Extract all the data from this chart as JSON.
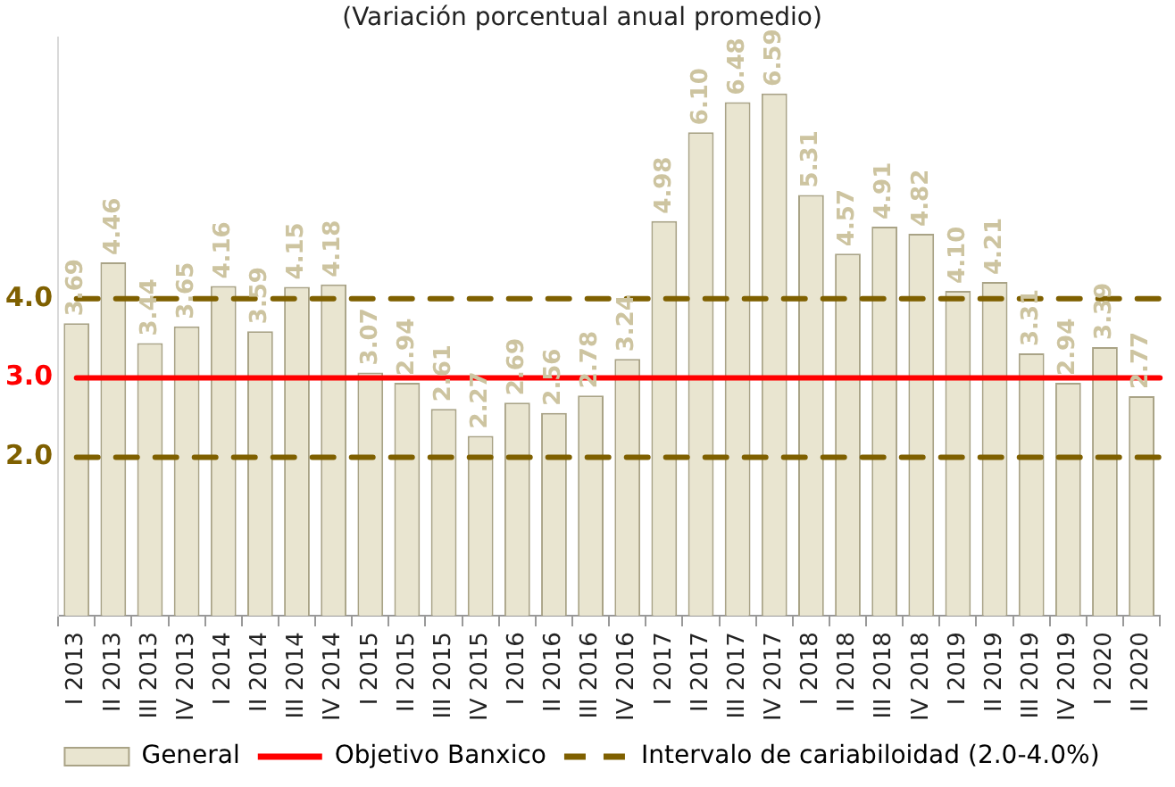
{
  "chart_data": {
    "type": "bar",
    "title": "(Variación porcentual anual promedio)",
    "categories": [
      "I 2013",
      "II 2013",
      "III 2013",
      "IV 2013",
      "I 2014",
      "II 2014",
      "III 2014",
      "IV 2014",
      "I 2015",
      "II 2015",
      "III 2015",
      "IV 2015",
      "I 2016",
      "II 2016",
      "III 2016",
      "IV 2016",
      "I 2017",
      "II 2017",
      "III 2017",
      "IV 2017",
      "I 2018",
      "II 2018",
      "III 2018",
      "IV 2018",
      "I 2019",
      "II 2019",
      "III 2019",
      "IV 2019",
      "I 2020",
      "II 2020"
    ],
    "series": [
      {
        "name": "General",
        "color": "#e9e5d0",
        "values": [
          3.69,
          4.46,
          3.44,
          3.65,
          4.16,
          3.59,
          4.15,
          4.18,
          3.07,
          2.94,
          2.61,
          2.27,
          2.69,
          2.56,
          2.78,
          3.24,
          4.98,
          6.1,
          6.48,
          6.59,
          5.31,
          4.57,
          4.91,
          4.82,
          4.1,
          4.21,
          3.31,
          2.94,
          3.39,
          2.77
        ]
      }
    ],
    "value_labels": [
      "3.69",
      "4.46",
      "3.44",
      "3.65",
      "4.16",
      "3.59",
      "4.15",
      "4.18",
      "3.07",
      "2.94",
      "2.61",
      "2.27",
      "2.69",
      "2.56",
      "2.78",
      "3.24",
      "4.98",
      "6.10",
      "6.48",
      "6.59",
      "5.31",
      "4.57",
      "4.91",
      "4.82",
      "4.10",
      "4.21",
      "3.31",
      "2.94",
      "3.39",
      "2.77"
    ],
    "yticks": [
      {
        "value": 2,
        "label": "2.0"
      },
      {
        "value": 3,
        "label": "3.0"
      },
      {
        "value": 4,
        "label": "4.0"
      }
    ],
    "ref_lines": [
      {
        "axis": "y",
        "value": 3,
        "label": "Objetivo Banxico",
        "color": "#ff0000",
        "line_style": "solid"
      },
      {
        "axis": "y",
        "value": 4,
        "label": "Intervalo de cariabiloidad (2.0-4.0%)",
        "color": "#7f6000",
        "line_style": "dashed"
      },
      {
        "axis": "y",
        "value": 2,
        "color": "#7f6000",
        "line_style": "dashed"
      }
    ],
    "ylim": [
      0,
      7.3
    ],
    "grid": false,
    "legend": "bottom"
  }
}
